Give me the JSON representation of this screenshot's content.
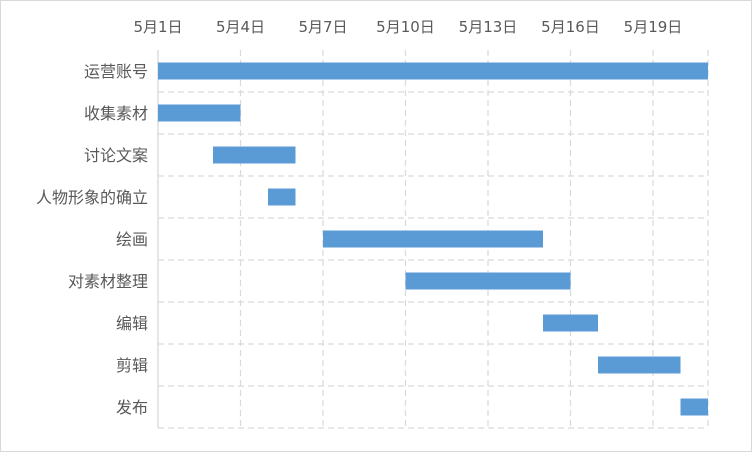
{
  "chart_data": {
    "type": "bar",
    "orientation": "horizontal-gantt",
    "title": "",
    "xlabel": "",
    "ylabel": "",
    "x_tick_labels": [
      "5月1日",
      "5月4日",
      "5月7日",
      "5月10日",
      "5月13日",
      "5月16日",
      "5月19日"
    ],
    "x_ticks": [
      1,
      4,
      7,
      10,
      13,
      16,
      19
    ],
    "xlim": [
      1,
      21
    ],
    "grid": true,
    "legend": "none",
    "bar_color": "#5b9bd5",
    "categories": [
      "运营账号",
      "收集素材",
      "讨论文案",
      "人物形象的确立",
      "绘画",
      "对素材整理",
      "编辑",
      "剪辑",
      "发布"
    ],
    "tasks": [
      {
        "name": "运营账号",
        "start": 1,
        "end": 21
      },
      {
        "name": "收集素材",
        "start": 1,
        "end": 4
      },
      {
        "name": "讨论文案",
        "start": 3,
        "end": 6
      },
      {
        "name": "人物形象的确立",
        "start": 5,
        "end": 6
      },
      {
        "name": "绘画",
        "start": 7,
        "end": 15
      },
      {
        "name": "对素材整理",
        "start": 10,
        "end": 16
      },
      {
        "name": "编辑",
        "start": 15,
        "end": 17
      },
      {
        "name": "剪辑",
        "start": 17,
        "end": 20
      },
      {
        "name": "发布",
        "start": 20,
        "end": 21
      }
    ]
  }
}
